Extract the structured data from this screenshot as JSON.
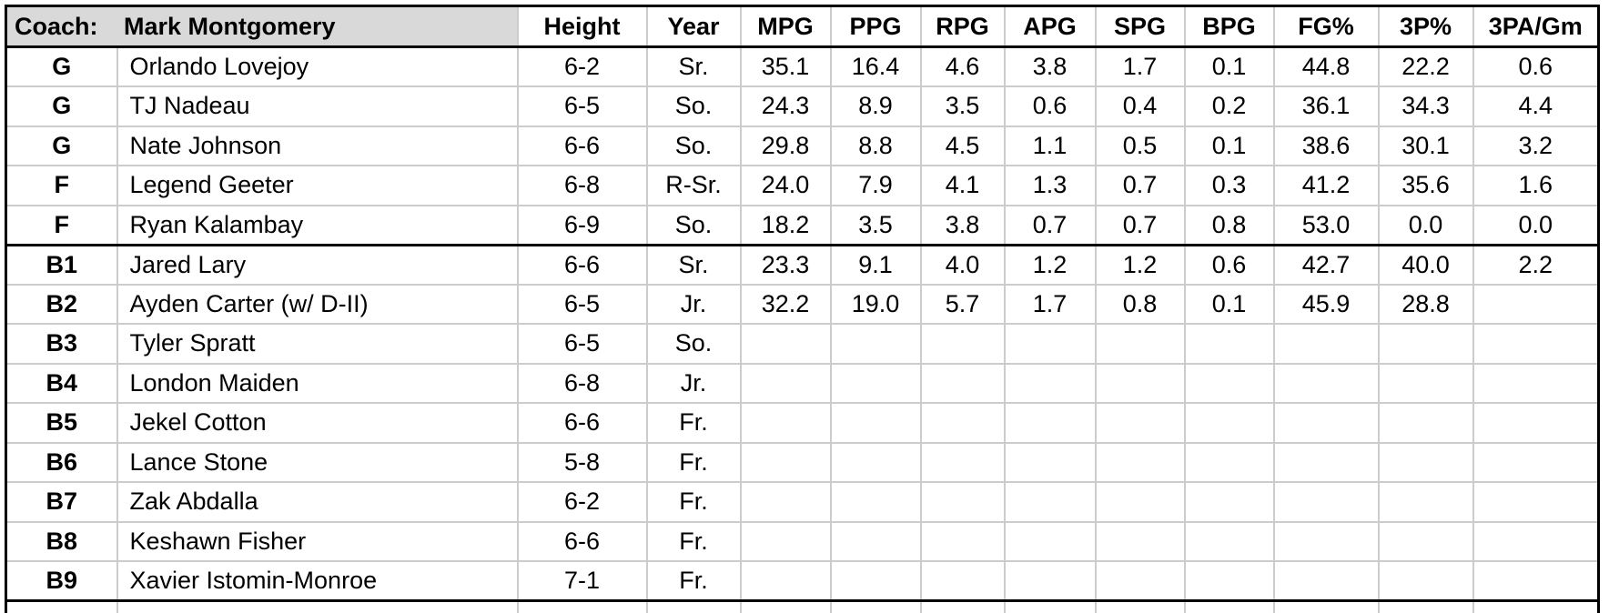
{
  "roster": {
    "coach_label": "Coach:",
    "coach_name": "Mark Montgomery",
    "columns": [
      "Height",
      "Year",
      "MPG",
      "PPG",
      "RPG",
      "APG",
      "SPG",
      "BPG",
      "FG%",
      "3P%",
      "3PA/Gm"
    ],
    "starters": [
      {
        "pos": "G",
        "name": "Orlando Lovejoy",
        "height": "6-2",
        "year": "Sr.",
        "stats": [
          "35.1",
          "16.4",
          "4.6",
          "3.8",
          "1.7",
          "0.1",
          "44.8",
          "22.2",
          "0.6"
        ]
      },
      {
        "pos": "G",
        "name": "TJ Nadeau",
        "height": "6-5",
        "year": "So.",
        "stats": [
          "24.3",
          "8.9",
          "3.5",
          "0.6",
          "0.4",
          "0.2",
          "36.1",
          "34.3",
          "4.4"
        ]
      },
      {
        "pos": "G",
        "name": "Nate Johnson",
        "height": "6-6",
        "year": "So.",
        "stats": [
          "29.8",
          "8.8",
          "4.5",
          "1.1",
          "0.5",
          "0.1",
          "38.6",
          "30.1",
          "3.2"
        ]
      },
      {
        "pos": "F",
        "name": "Legend Geeter",
        "height": "6-8",
        "year": "R-Sr.",
        "stats": [
          "24.0",
          "7.9",
          "4.1",
          "1.3",
          "0.7",
          "0.3",
          "41.2",
          "35.6",
          "1.6"
        ]
      },
      {
        "pos": "F",
        "name": "Ryan Kalambay",
        "height": "6-9",
        "year": "So.",
        "stats": [
          "18.2",
          "3.5",
          "3.8",
          "0.7",
          "0.7",
          "0.8",
          "53.0",
          "0.0",
          "0.0"
        ]
      }
    ],
    "bench": [
      {
        "pos": "B1",
        "name": "Jared Lary",
        "height": "6-6",
        "year": "Sr.",
        "stats": [
          "23.3",
          "9.1",
          "4.0",
          "1.2",
          "1.2",
          "0.6",
          "42.7",
          "40.0",
          "2.2"
        ]
      },
      {
        "pos": "B2",
        "name": "Ayden Carter (w/ D-II)",
        "height": "6-5",
        "year": "Jr.",
        "stats": [
          "32.2",
          "19.0",
          "5.7",
          "1.7",
          "0.8",
          "0.1",
          "45.9",
          "28.8",
          ""
        ]
      },
      {
        "pos": "B3",
        "name": "Tyler Spratt",
        "height": "6-5",
        "year": "So.",
        "stats": [
          "",
          "",
          "",
          "",
          "",
          "",
          "",
          "",
          ""
        ]
      },
      {
        "pos": "B4",
        "name": "London Maiden",
        "height": "6-8",
        "year": "Jr.",
        "stats": [
          "",
          "",
          "",
          "",
          "",
          "",
          "",
          "",
          ""
        ]
      },
      {
        "pos": "B5",
        "name": "Jekel Cotton",
        "height": "6-6",
        "year": "Fr.",
        "stats": [
          "",
          "",
          "",
          "",
          "",
          "",
          "",
          "",
          ""
        ]
      },
      {
        "pos": "B6",
        "name": "Lance Stone",
        "height": "5-8",
        "year": "Fr.",
        "stats": [
          "",
          "",
          "",
          "",
          "",
          "",
          "",
          "",
          ""
        ]
      },
      {
        "pos": "B7",
        "name": "Zak Abdalla",
        "height": "6-2",
        "year": "Fr.",
        "stats": [
          "",
          "",
          "",
          "",
          "",
          "",
          "",
          "",
          ""
        ]
      },
      {
        "pos": "B8",
        "name": "Keshawn Fisher",
        "height": "6-6",
        "year": "Fr.",
        "stats": [
          "",
          "",
          "",
          "",
          "",
          "",
          "",
          "",
          ""
        ]
      },
      {
        "pos": "B9",
        "name": "Xavier Istomin-Monroe",
        "height": "7-1",
        "year": "Fr.",
        "stats": [
          "",
          "",
          "",
          "",
          "",
          "",
          "",
          "",
          ""
        ]
      }
    ]
  },
  "colors": {
    "header_bg": "#d9d9d9",
    "grid_line": "#cccccc",
    "section_border": "#000000",
    "text": "#000000",
    "background": "#ffffff"
  }
}
